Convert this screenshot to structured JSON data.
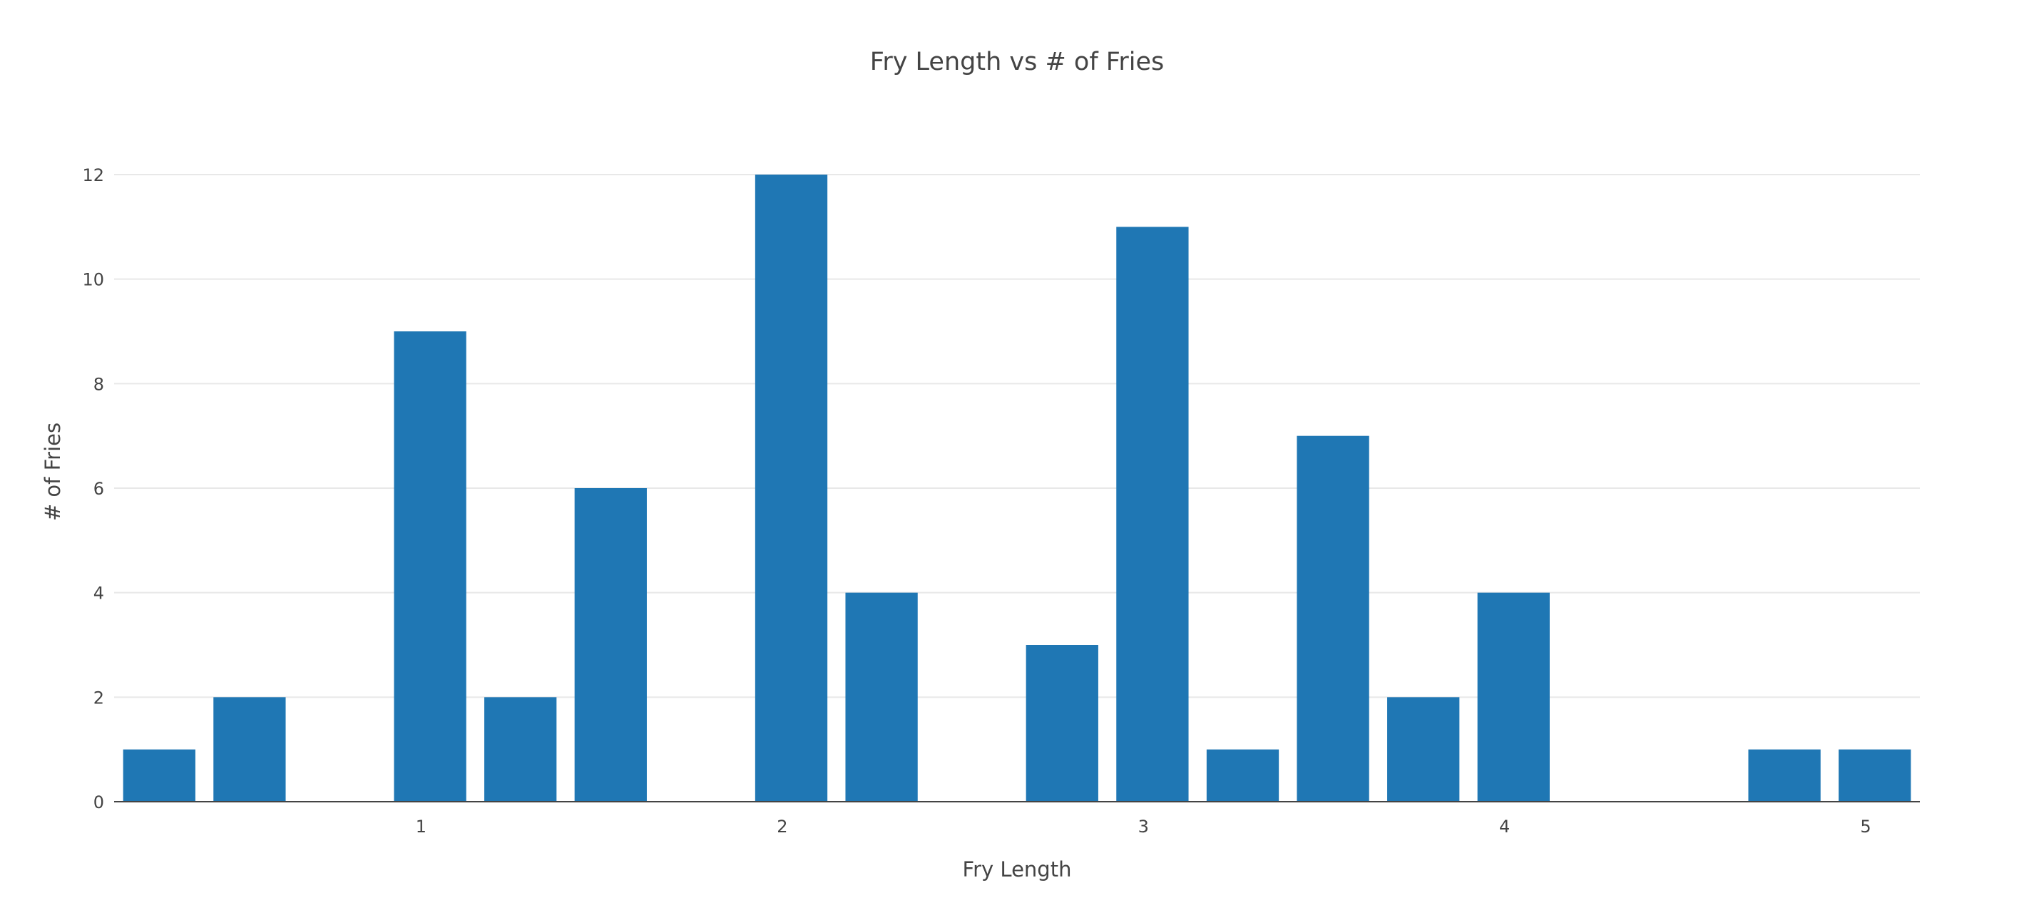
{
  "chart_data": {
    "type": "bar",
    "title": "Fry Length vs # of Fries",
    "xlabel": "Fry Length",
    "ylabel": "# of Fries",
    "bar_color": "#1f77b4",
    "grid": true,
    "xlim": [
      0.15,
      5.15
    ],
    "ylim": [
      0,
      12
    ],
    "x_ticks": [
      1,
      2,
      3,
      4,
      5
    ],
    "y_ticks": [
      0,
      2,
      4,
      6,
      8,
      10,
      12
    ],
    "x": [
      0.275,
      0.525,
      1.025,
      1.275,
      1.525,
      2.025,
      2.275,
      2.775,
      3.025,
      3.275,
      3.525,
      3.775,
      4.025,
      4.775,
      5.025
    ],
    "values": [
      1,
      2,
      9,
      2,
      6,
      12,
      4,
      3,
      11,
      1,
      7,
      2,
      4,
      1,
      1
    ],
    "bar_width": 0.2
  }
}
